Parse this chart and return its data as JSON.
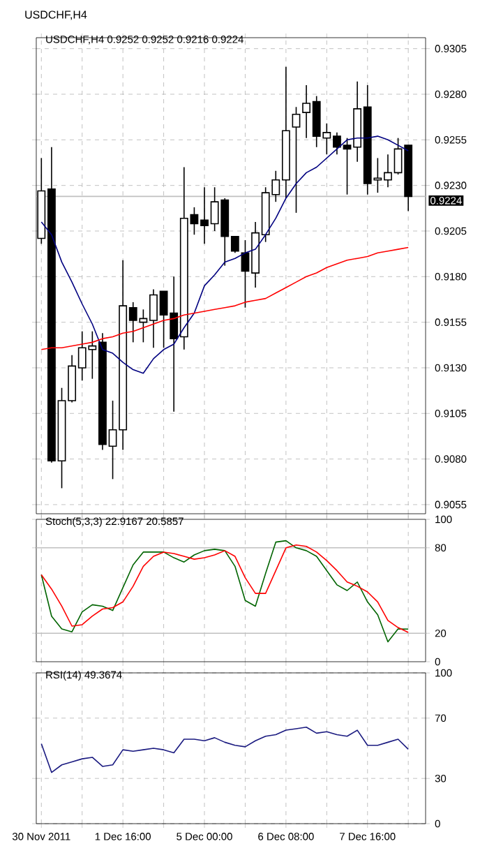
{
  "chart_data": [
    {
      "type": "candlestick",
      "title": "USDCHF,H4 0.9252 0.9252 0.9216 0.9224",
      "annotations": [
        "USDCHF,H4"
      ],
      "categories": [
        null,
        null,
        null,
        null,
        null,
        null,
        null,
        null,
        null,
        null,
        null,
        null,
        null,
        null,
        null,
        null,
        null,
        null,
        null,
        null,
        null,
        null,
        null,
        null,
        null,
        null,
        null,
        null,
        null,
        null,
        null,
        null,
        null,
        null,
        null,
        null,
        null
      ],
      "ohlc": [
        [
          0.9201,
          0.9245,
          0.9198,
          0.9227
        ],
        [
          0.9228,
          0.9251,
          0.9078,
          0.9079
        ],
        [
          0.9079,
          0.9119,
          0.9064,
          0.9112
        ],
        [
          0.9112,
          0.9137,
          0.9111,
          0.9131
        ],
        [
          0.913,
          0.915,
          0.9123,
          0.9141
        ],
        [
          0.914,
          0.915,
          0.9124,
          0.9142
        ],
        [
          0.9144,
          0.9149,
          0.9085,
          0.9088
        ],
        [
          0.9087,
          0.9112,
          0.9069,
          0.9096
        ],
        [
          0.9096,
          0.9189,
          0.9085,
          0.9164
        ],
        [
          0.9163,
          0.9166,
          0.9144,
          0.9156
        ],
        [
          0.9155,
          0.9162,
          0.9144,
          0.9157
        ],
        [
          0.9156,
          0.9173,
          0.9141,
          0.917
        ],
        [
          0.9172,
          0.9172,
          0.9141,
          0.9159
        ],
        [
          0.916,
          0.918,
          0.9106,
          0.9146
        ],
        [
          0.9147,
          0.924,
          0.914,
          0.9212
        ],
        [
          0.9214,
          0.9218,
          0.9203,
          0.9209
        ],
        [
          0.9211,
          0.9229,
          0.9198,
          0.9208
        ],
        [
          0.9209,
          0.9229,
          0.9205,
          0.9221
        ],
        [
          0.9222,
          0.9223,
          0.9186,
          0.9202
        ],
        [
          0.9202,
          0.9202,
          0.9193,
          0.9194
        ],
        [
          0.9193,
          0.92,
          0.9163,
          0.9183
        ],
        [
          0.9182,
          0.921,
          0.9174,
          0.9204
        ],
        [
          0.9203,
          0.9229,
          0.9199,
          0.9226
        ],
        [
          0.9225,
          0.9238,
          0.9221,
          0.9233
        ],
        [
          0.9233,
          0.9295,
          0.9223,
          0.926
        ],
        [
          0.9262,
          0.9273,
          0.9215,
          0.9269
        ],
        [
          0.927,
          0.9285,
          0.9256,
          0.9275
        ],
        [
          0.9276,
          0.9279,
          0.9251,
          0.9257
        ],
        [
          0.9256,
          0.9264,
          0.9247,
          0.9259
        ],
        [
          0.9257,
          0.9259,
          0.9247,
          0.9251
        ],
        [
          0.9252,
          0.9256,
          0.9225,
          0.925
        ],
        [
          0.9251,
          0.9287,
          0.9243,
          0.9272
        ],
        [
          0.9273,
          0.9285,
          0.9225,
          0.9231
        ],
        [
          0.9233,
          0.9245,
          0.9226,
          0.9234
        ],
        [
          0.9233,
          0.9247,
          0.9229,
          0.9237
        ],
        [
          0.9237,
          0.9256,
          0.9236,
          0.925
        ],
        [
          0.9252,
          0.9252,
          0.9216,
          0.9224
        ]
      ],
      "series": [
        {
          "type": "line",
          "color": "#000080",
          "values": [
            0.921,
            0.9203,
            0.9188,
            0.9177,
            0.9165,
            0.9154,
            0.914,
            0.9138,
            0.9133,
            0.9129,
            0.9127,
            0.9135,
            0.914,
            0.9143,
            0.9152,
            0.916,
            0.9175,
            0.9181,
            0.9188,
            0.919,
            0.9193,
            0.9195,
            0.9203,
            0.9212,
            0.9223,
            0.9231,
            0.9237,
            0.924,
            0.9245,
            0.925,
            0.9255,
            0.9256,
            0.9256,
            0.9257,
            0.9255,
            0.9252,
            0.9249
          ]
        },
        {
          "type": "line",
          "color": "#ff0000",
          "values": [
            0.914,
            0.9141,
            0.9141,
            0.9142,
            0.9143,
            0.9144,
            0.9146,
            0.9147,
            0.9149,
            0.915,
            0.9152,
            0.9154,
            0.9156,
            0.9157,
            0.9159,
            0.916,
            0.9161,
            0.9162,
            0.9163,
            0.9164,
            0.9166,
            0.9167,
            0.9168,
            0.9171,
            0.9174,
            0.9177,
            0.918,
            0.9182,
            0.9185,
            0.9187,
            0.9189,
            0.919,
            0.9191,
            0.9193,
            0.9194,
            0.9195,
            0.9196
          ]
        }
      ],
      "ylim": [
        0.905,
        0.9311
      ],
      "yticks": [
        {
          "value": 0.9055,
          "label": "0.9055"
        },
        {
          "value": 0.908,
          "label": "0.9080"
        },
        {
          "value": 0.9105,
          "label": "0.9105"
        },
        {
          "value": 0.913,
          "label": "0.9130"
        },
        {
          "value": 0.9155,
          "label": "0.9155"
        },
        {
          "value": 0.918,
          "label": "0.9180"
        },
        {
          "value": 0.9205,
          "label": "0.9205"
        },
        {
          "value": 0.923,
          "label": "0.9230"
        },
        {
          "value": 0.9255,
          "label": "0.9255"
        },
        {
          "value": 0.928,
          "label": "0.9280"
        },
        {
          "value": 0.9305,
          "label": "0.9305"
        }
      ],
      "ref_lines": [
        {
          "axis": "y",
          "value": 0.9224,
          "label": "0.9224",
          "color": "#c0c0c0"
        }
      ],
      "grid": true,
      "tick_labels": "y"
    },
    {
      "type": "line",
      "title": "Stoch(5,3,3) 22.9167 20.5857",
      "categories": [
        null,
        null,
        null,
        null,
        null,
        null,
        null,
        null,
        null,
        null,
        null,
        null,
        null,
        null,
        null,
        null,
        null,
        null,
        null,
        null,
        null,
        null,
        null,
        null,
        null,
        null,
        null,
        null,
        null,
        null,
        null,
        null,
        null,
        null,
        null,
        null,
        null
      ],
      "series": [
        {
          "color": "#006400",
          "values": [
            61,
            32,
            23,
            21,
            35,
            40,
            39,
            36,
            52,
            68,
            77,
            77,
            77,
            73,
            70,
            75,
            78,
            79,
            78,
            67,
            43,
            39,
            62,
            84,
            85,
            80,
            78,
            74,
            64,
            54,
            50,
            56,
            42,
            33,
            14,
            23,
            22.9167
          ]
        },
        {
          "color": "#ff0000",
          "values": [
            61,
            51,
            39,
            25,
            26,
            32,
            37,
            38,
            42,
            53,
            67,
            74,
            77,
            76,
            74,
            72,
            73,
            75,
            78,
            74,
            59,
            48,
            48,
            64,
            80,
            82,
            81,
            77,
            71,
            64,
            56,
            53,
            49,
            42,
            29,
            24,
            20.5857
          ]
        }
      ],
      "ylim": [
        0,
        100
      ],
      "yticks": [
        0,
        20,
        80,
        100
      ],
      "ref_lines": [
        {
          "axis": "y",
          "value": 80,
          "color": "#c0c0c0"
        },
        {
          "axis": "y",
          "value": 20,
          "color": "#c0c0c0"
        }
      ],
      "grid": "x",
      "tick_labels": "y"
    },
    {
      "type": "line",
      "title": "RSI(14) 49.3674",
      "categories": [
        "30 Nov 2011",
        null,
        null,
        null,
        null,
        null,
        null,
        null,
        "1 Dec 16:00",
        null,
        null,
        null,
        null,
        null,
        null,
        null,
        "5 Dec 00:00",
        null,
        null,
        null,
        null,
        null,
        null,
        null,
        "6 Dec 08:00",
        null,
        null,
        null,
        null,
        null,
        null,
        null,
        "7 Dec 16:00",
        null,
        null,
        null,
        null
      ],
      "color": "#1a1a80",
      "values": [
        53,
        34,
        39,
        41,
        43,
        44,
        38,
        39,
        49,
        48,
        49,
        50,
        49,
        47,
        56,
        56,
        55,
        57,
        54,
        52,
        51,
        55,
        58,
        59,
        62,
        63,
        64,
        60,
        61,
        59,
        58,
        62,
        52,
        52,
        54,
        56,
        49.3674
      ],
      "ylim": [
        0,
        100
      ],
      "yticks": [
        0,
        30,
        70,
        100
      ],
      "grid": true
    }
  ]
}
